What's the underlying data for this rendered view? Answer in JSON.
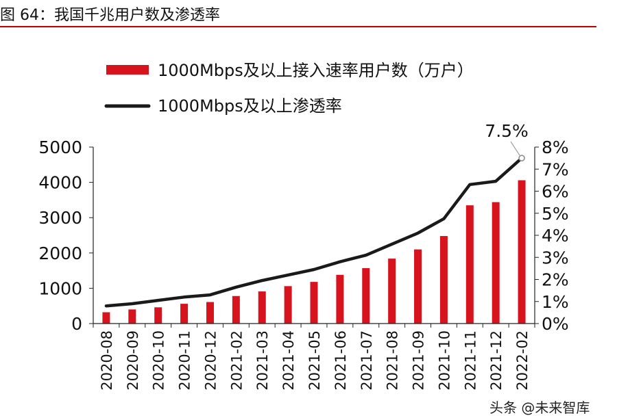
{
  "figure": {
    "title": "图 64：我国千兆用户数及渗透率"
  },
  "watermark": {
    "text": "头条 @未来智库"
  },
  "colors": {
    "bar": "#d7141e",
    "line": "#1a1a1a",
    "rule": "#c00000"
  },
  "chart_data": {
    "type": "bar",
    "categories": [
      "2020-08",
      "2020-09",
      "2020-10",
      "2020-11",
      "2020-12",
      "2021-02",
      "2021-03",
      "2021-04",
      "2021-05",
      "2021-06",
      "2021-07",
      "2021-08",
      "2021-09",
      "2021-10",
      "2021-11",
      "2021-12",
      "2022-02"
    ],
    "series": [
      {
        "name": "1000Mbps及以上接入速率用户数（万户）",
        "type": "bar",
        "axis": "left",
        "values": [
          320,
          400,
          460,
          560,
          610,
          780,
          910,
          1060,
          1180,
          1380,
          1570,
          1840,
          2100,
          2480,
          3350,
          3440,
          4060
        ]
      },
      {
        "name": "1000Mbps及以上渗透率",
        "type": "line",
        "axis": "right",
        "unit": "%",
        "values": [
          0.8,
          0.9,
          1.05,
          1.2,
          1.3,
          1.65,
          1.95,
          2.2,
          2.45,
          2.8,
          3.1,
          3.6,
          4.1,
          4.75,
          6.3,
          6.45,
          7.5
        ]
      }
    ],
    "y_left": {
      "ylim": [
        0,
        5000
      ],
      "ticks": [
        "0",
        "1000",
        "2000",
        "3000",
        "4000",
        "5000"
      ]
    },
    "y_right": {
      "ylim": [
        0,
        8
      ],
      "ticks": [
        "0%",
        "1%",
        "2%",
        "3%",
        "4%",
        "5%",
        "6%",
        "7%",
        "8%"
      ]
    },
    "annotation": {
      "text": "7.5%",
      "category": "2022-02",
      "series": 1
    },
    "legend": "top",
    "grid": false
  }
}
